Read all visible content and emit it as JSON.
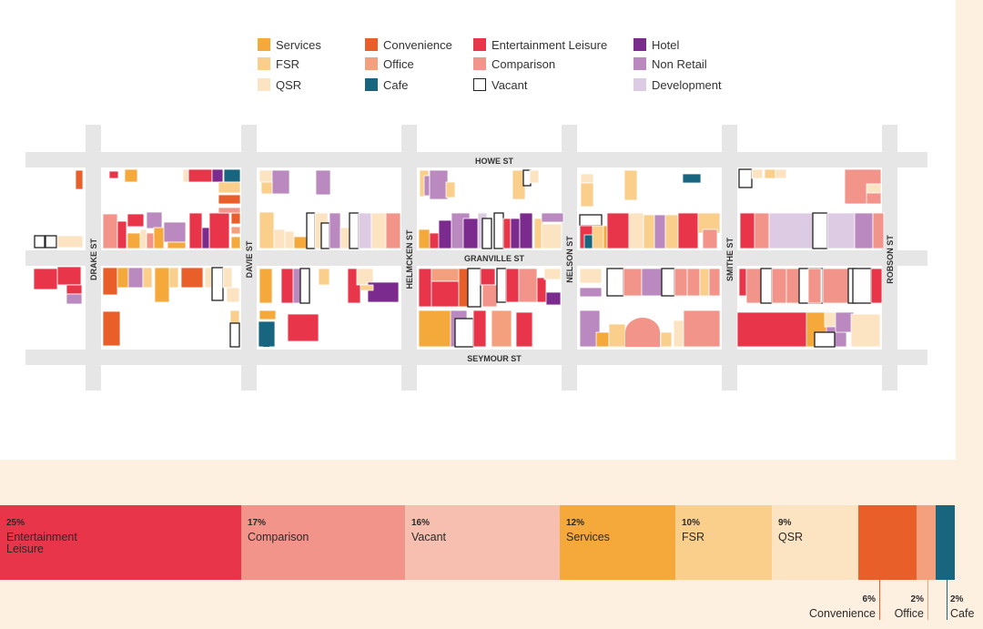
{
  "colors": {
    "services": "#f6a93b",
    "fsr": "#f9cf8b",
    "qsr": "#fce4c2",
    "convenience": "#e95f2a",
    "office": "#f4a07f",
    "cafe": "#17657e",
    "entertainment": "#e8354a",
    "comparison": "#f3948a",
    "vacant": "#ffffff",
    "vacant_bar": "#f7bfaf",
    "hotel": "#7b2a8e",
    "non_retail": "#b989bf",
    "development": "#dccbe3",
    "street": "#e6e6e6"
  },
  "legend": [
    {
      "key": "services",
      "label": "Services"
    },
    {
      "key": "fsr",
      "label": "FSR"
    },
    {
      "key": "qsr",
      "label": "QSR"
    },
    {
      "key": "convenience",
      "label": "Convenience"
    },
    {
      "key": "office",
      "label": "Office"
    },
    {
      "key": "cafe",
      "label": "Cafe"
    },
    {
      "key": "entertainment",
      "label": "Entertainment Leisure"
    },
    {
      "key": "comparison",
      "label": "Comparison"
    },
    {
      "key": "vacant",
      "label": "Vacant"
    },
    {
      "key": "hotel",
      "label": "Hotel"
    },
    {
      "key": "non_retail",
      "label": "Non Retail"
    },
    {
      "key": "development",
      "label": "Development"
    }
  ],
  "streets": {
    "howe": "HOWE ST",
    "granville": "GRANVILLE ST",
    "seymour": "SEYMOUR ST",
    "drake": "DRAKE ST",
    "davie": "DAVIE ST",
    "helmcken": "HELMCKEN ST",
    "nelson": "NELSON ST",
    "smithe": "SMITHE ST",
    "robson": "ROBSON ST"
  },
  "breakdown": [
    {
      "key": "entertainment",
      "pct": "25%",
      "line1": "Entertainment",
      "line2": "Leisure",
      "value": 25
    },
    {
      "key": "comparison",
      "pct": "17%",
      "line1": "Comparison",
      "value": 17
    },
    {
      "key": "vacant",
      "pct": "16%",
      "line1": "Vacant",
      "value": 16
    },
    {
      "key": "services",
      "pct": "12%",
      "line1": "Services",
      "value": 12
    },
    {
      "key": "fsr",
      "pct": "10%",
      "line1": "FSR",
      "value": 10
    },
    {
      "key": "qsr",
      "pct": "9%",
      "line1": "QSR",
      "value": 9
    },
    {
      "key": "convenience",
      "pct": "6%",
      "line1": "Convenience",
      "value": 6
    },
    {
      "key": "office",
      "pct": "2%",
      "line1": "Office",
      "value": 2
    },
    {
      "key": "cafe",
      "pct": "2%",
      "line1": "Cafe",
      "value": 2
    }
  ]
}
